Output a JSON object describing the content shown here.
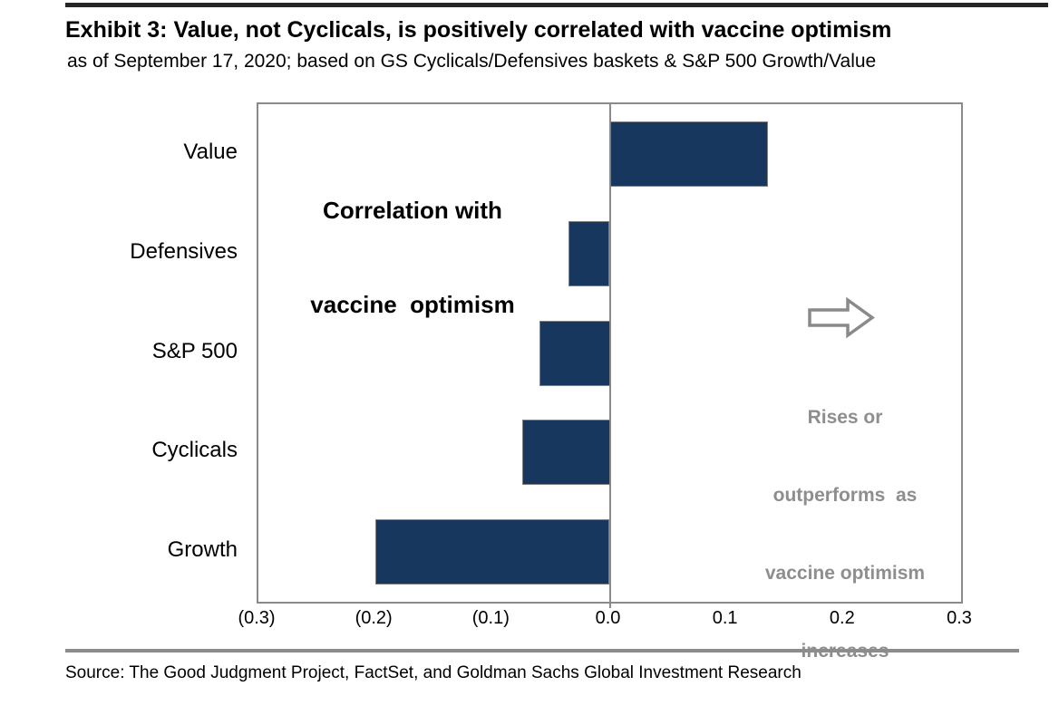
{
  "header": {
    "title": "Exhibit 3: Value, not Cyclicals, is positively correlated with vaccine optimism",
    "subtitle": "as of September 17, 2020; based on GS Cyclicals/Defensives baskets & S&P 500 Growth/Value"
  },
  "chart_data": {
    "type": "bar",
    "orientation": "horizontal",
    "categories": [
      "Value",
      "Defensives",
      "S&P 500",
      "Cyclicals",
      "Growth"
    ],
    "values": [
      0.135,
      -0.035,
      -0.06,
      -0.075,
      -0.2
    ],
    "xlim": [
      -0.3,
      0.3
    ],
    "xticks": [
      -0.3,
      -0.2,
      -0.1,
      0,
      0.1,
      0.2,
      0.3
    ],
    "xtick_labels": [
      "(0.3)",
      "(0.2)",
      "(0.1)",
      "0.0",
      "0.1",
      "0.2",
      "0.3"
    ],
    "xlabel": "",
    "ylabel": "",
    "grid": false,
    "legend": false,
    "bar_color": "#17375e",
    "bar_border_color": "#7f7f7f",
    "plot_border_color": "#8a8a8a",
    "zero_line_color": "#8a8a8a"
  },
  "annotations": {
    "correlation_label": {
      "line1": "Correlation with",
      "line2": "vaccine  optimism"
    },
    "rises_note": {
      "color": "#8e8e8e",
      "lines": [
        "Rises or",
        "outperforms  as",
        "vaccine optimism",
        "increases"
      ]
    },
    "arrow": {
      "name": "right-arrow",
      "stroke_color": "#8a8a8a"
    }
  },
  "footer": {
    "source": "Source: The Good Judgment Project, FactSet, and Goldman Sachs Global Investment Research"
  }
}
